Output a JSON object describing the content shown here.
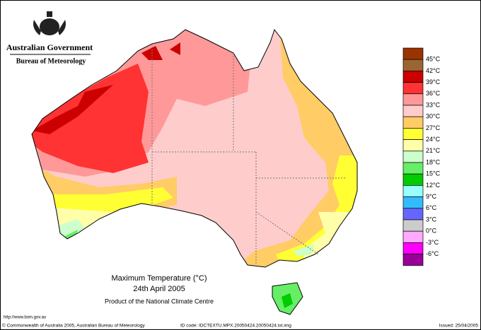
{
  "header": {
    "agency": "Australian Government",
    "bureau": "Bureau of Meteorology"
  },
  "map": {
    "title": "Maximum Temperature (°C)",
    "date": "24th April 2005",
    "product": "Product of the National Climate Centre"
  },
  "legend": {
    "labels": [
      "45°C",
      "42°C",
      "39°C",
      "36°C",
      "33°C",
      "30°C",
      "27°C",
      "24°C",
      "21°C",
      "18°C",
      "15°C",
      "12°C",
      "9°C",
      "6°C",
      "3°C",
      "0°C",
      "-3°C",
      "-6°C"
    ],
    "colors": [
      "#993300",
      "#996633",
      "#cc0000",
      "#ff3333",
      "#ff9999",
      "#ffcccc",
      "#ffcc66",
      "#ffff33",
      "#ffffaa",
      "#ccffcc",
      "#66ee66",
      "#00cc00",
      "#99ffff",
      "#33bbff",
      "#6666ff",
      "#cccccc",
      "#ffaaff",
      "#ff00ff",
      "#990099"
    ]
  },
  "footer": {
    "url": "http://www.bom.gov.au",
    "copyright": "© Commonwealth of Australia 2005, Australian Bureau of Meteorology",
    "id_code": "ID code: IDCTEXTU.MPX.20050424.20050424.txt.img",
    "issued": "Issued: 25/04/2005"
  }
}
